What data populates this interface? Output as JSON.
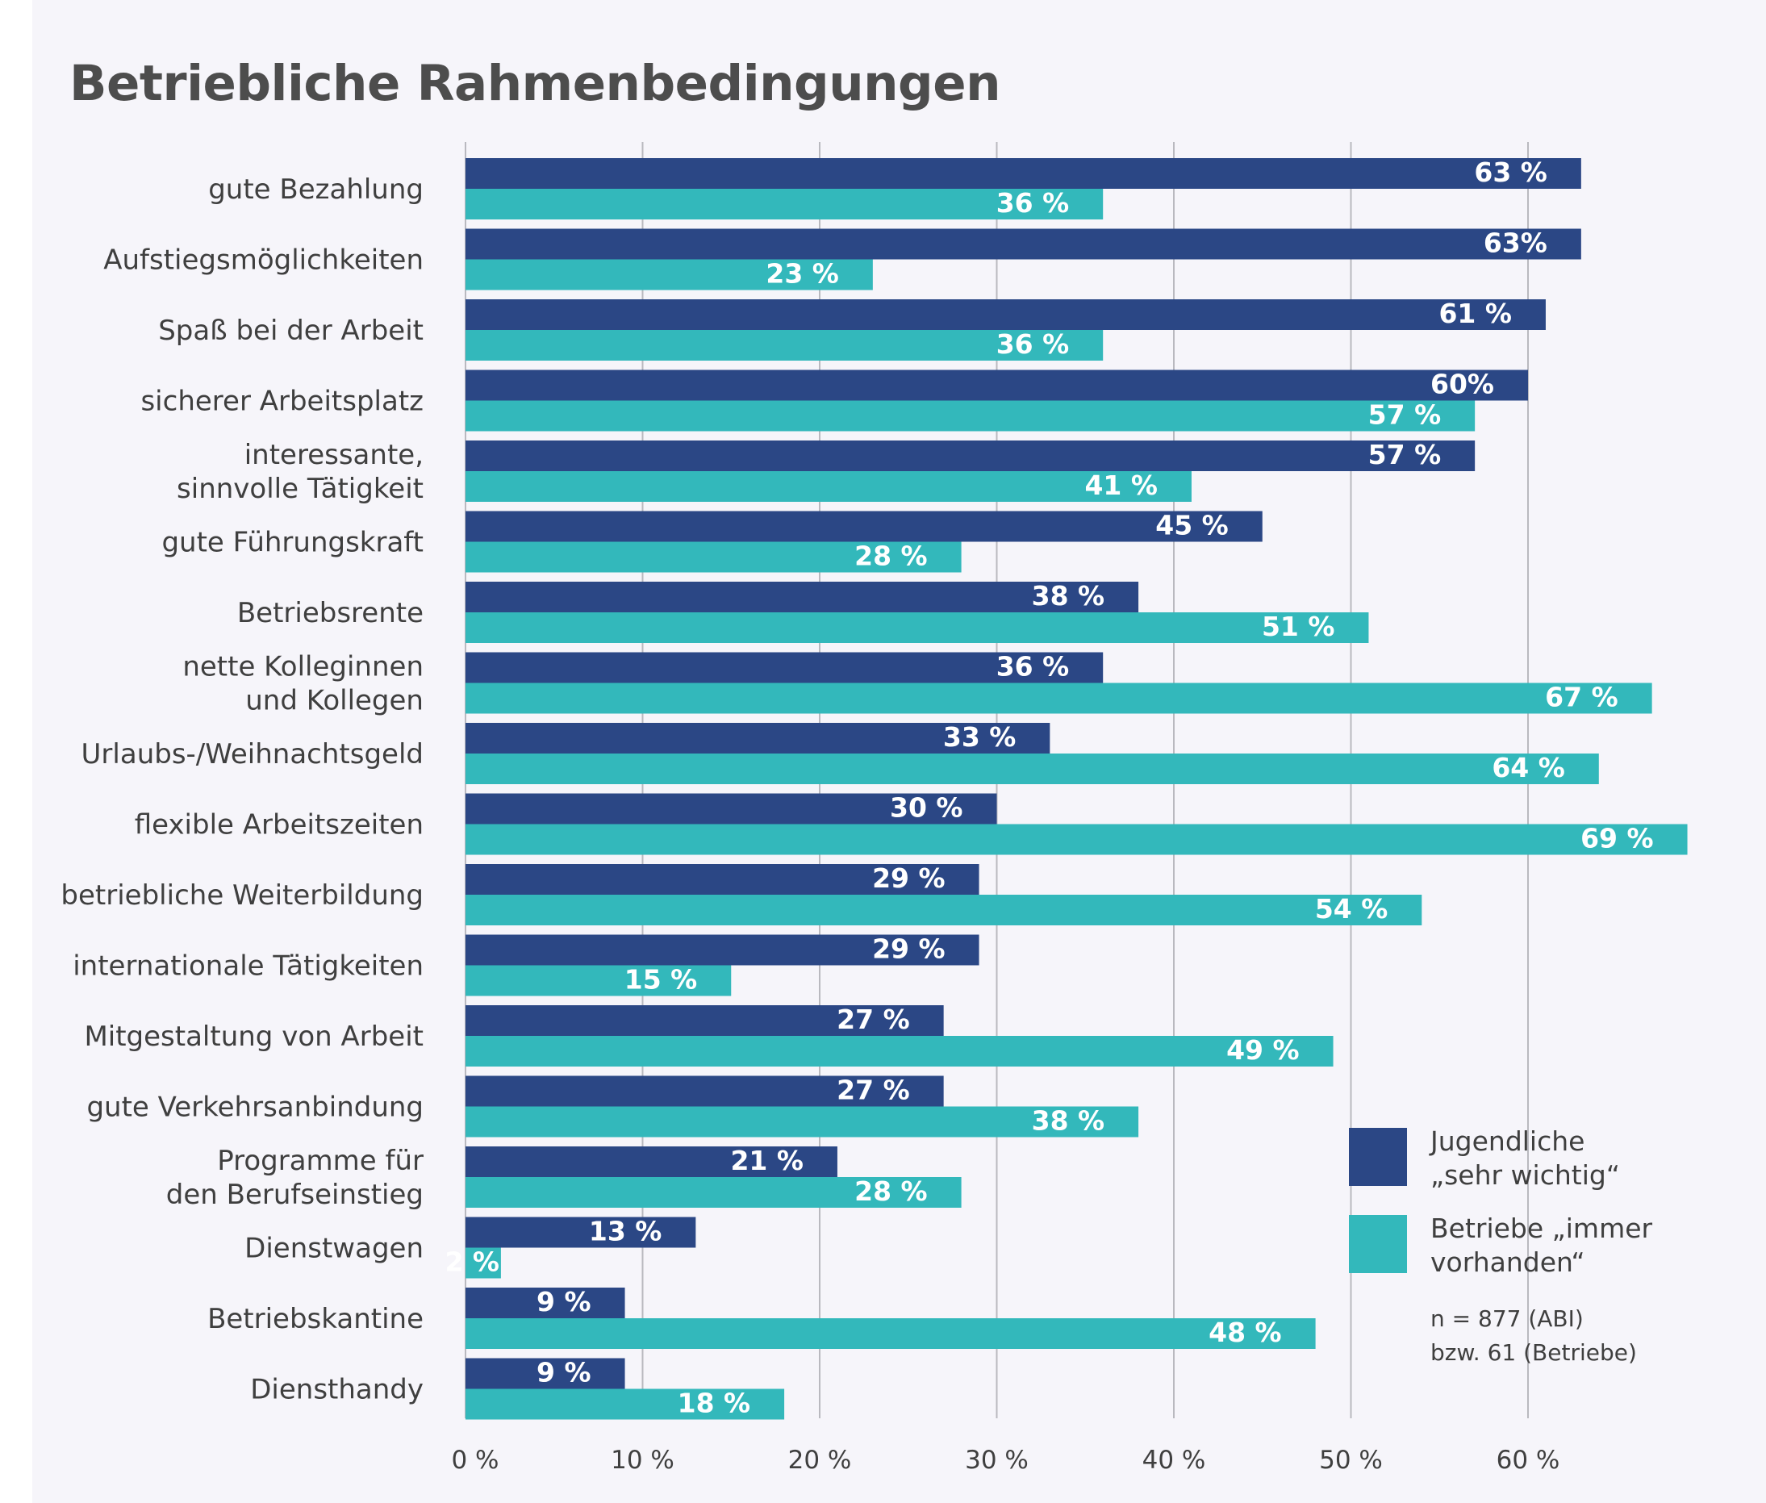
{
  "title": "Betriebliche Rahmenbedingungen",
  "colors": {
    "jugendliche": "#2b4785",
    "betriebe": "#33b8bb",
    "grid": "#b9b9bf"
  },
  "chart_data": {
    "type": "bar",
    "orientation": "horizontal",
    "title": "Betriebliche Rahmenbedingungen",
    "categories": [
      [
        "gute Bezahlung"
      ],
      [
        "Aufstiegsmöglichkeiten"
      ],
      [
        "Spaß bei der Arbeit"
      ],
      [
        "sicherer Arbeitsplatz"
      ],
      [
        "interessante,",
        "sinnvolle Tätigkeit"
      ],
      [
        "gute Führungskraft"
      ],
      [
        "Betriebsrente"
      ],
      [
        "nette Kolleginnen",
        "und Kollegen"
      ],
      [
        "Urlaubs-/Weihnachtsgeld"
      ],
      [
        "flexible Arbeitszeiten"
      ],
      [
        "betriebliche Weiterbildung"
      ],
      [
        "internationale Tätigkeiten"
      ],
      [
        "Mitgestaltung von Arbeit"
      ],
      [
        "gute Verkehrsanbindung"
      ],
      [
        "Programme für",
        "den Berufseinstieg"
      ],
      [
        "Dienstwagen"
      ],
      [
        "Betriebskantine"
      ],
      [
        "Diensthandy"
      ]
    ],
    "series": [
      {
        "name": "Jugendliche „sehr wichtig“",
        "values": [
          63,
          63,
          61,
          60,
          57,
          45,
          38,
          36,
          33,
          30,
          29,
          29,
          27,
          27,
          21,
          13,
          9,
          9
        ],
        "labels": [
          "63 %",
          "63%",
          "61 %",
          "60%",
          "57 %",
          "45 %",
          "38 %",
          "36 %",
          "33 %",
          "30 %",
          "29 %",
          "29 %",
          "27 %",
          "27 %",
          "21 %",
          "13 %",
          "9 %",
          "9 %"
        ]
      },
      {
        "name": "Betriebe „immer vorhanden“",
        "values": [
          36,
          23,
          36,
          57,
          41,
          28,
          51,
          67,
          64,
          69,
          54,
          15,
          49,
          38,
          28,
          2,
          48,
          18
        ],
        "labels": [
          "36 %",
          "23 %",
          "36 %",
          "57 %",
          "41 %",
          "28 %",
          "51 %",
          "67 %",
          "64 %",
          "69 %",
          "54 %",
          "15 %",
          "49 %",
          "38 %",
          "28 %",
          "2 %",
          "48 %",
          "18 %"
        ]
      }
    ],
    "xlim": [
      0,
      70
    ],
    "xticks": [
      0,
      10,
      20,
      30,
      40,
      50,
      60
    ],
    "xtick_labels": [
      "0 %",
      "10 %",
      "20 %",
      "30 %",
      "40 %",
      "50 %",
      "60 %"
    ],
    "grid": true,
    "legend_position": "bottom-right",
    "legend": [
      {
        "series": 0,
        "lines": [
          "Jugendliche",
          "„sehr wichtig“"
        ]
      },
      {
        "series": 1,
        "lines": [
          "Betriebe „immer",
          "vorhanden“"
        ]
      }
    ],
    "note": [
      "n = 877 (ABI)",
      "bzw. 61 (Betriebe)"
    ]
  }
}
